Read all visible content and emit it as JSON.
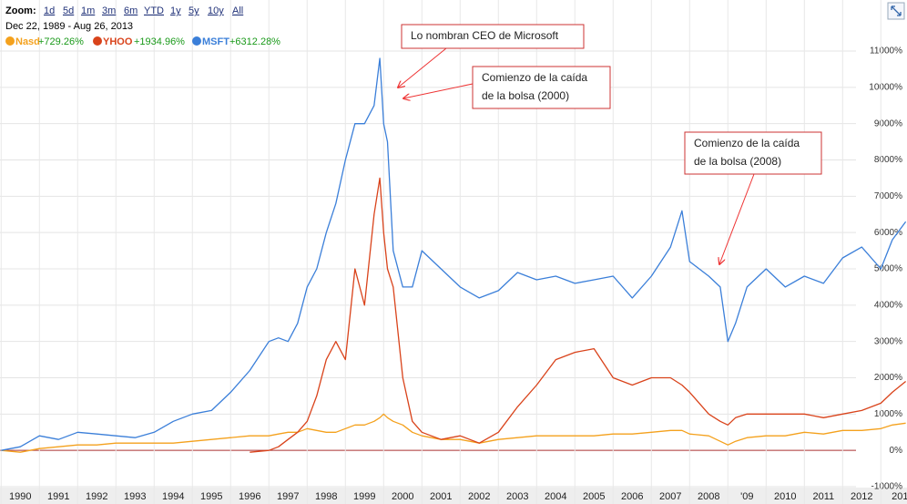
{
  "header": {
    "zoom_label": "Zoom:",
    "zoom_options": [
      "1d",
      "5d",
      "1m",
      "3m",
      "6m",
      "YTD",
      "1y",
      "5y",
      "10y",
      "All"
    ],
    "date_range": "Dec 22, 1989 - Aug 26, 2013"
  },
  "chart_data": {
    "type": "line",
    "x": [
      1990,
      1990.5,
      1991,
      1991.5,
      1992,
      1992.5,
      1993,
      1993.5,
      1994,
      1994.5,
      1995,
      1995.5,
      1996,
      1996.5,
      1997,
      1997.25,
      1997.5,
      1997.75,
      1998,
      1998.25,
      1998.5,
      1998.75,
      1999,
      1999.25,
      1999.5,
      1999.75,
      1999.9,
      2000,
      2000.1,
      2000.25,
      2000.5,
      2000.75,
      2001,
      2001.5,
      2002,
      2002.5,
      2003,
      2003.5,
      2004,
      2004.5,
      2005,
      2005.5,
      2006,
      2006.5,
      2007,
      2007.5,
      2007.8,
      2008,
      2008.5,
      2008.8,
      2009,
      2009.2,
      2009.5,
      2010,
      2010.5,
      2011,
      2011.5,
      2012,
      2012.5,
      2013,
      2013.3,
      2013.65
    ],
    "series": [
      {
        "name": "Nasd",
        "change": "+729.26%",
        "color": "#f4a11d",
        "values": [
          0,
          -50,
          50,
          100,
          150,
          150,
          200,
          200,
          200,
          200,
          250,
          300,
          350,
          400,
          400,
          450,
          500,
          500,
          600,
          550,
          500,
          500,
          600,
          700,
          700,
          800,
          900,
          1000,
          900,
          800,
          700,
          500,
          400,
          300,
          300,
          200,
          300,
          350,
          400,
          400,
          400,
          400,
          450,
          450,
          500,
          550,
          550,
          450,
          400,
          250,
          150,
          250,
          350,
          400,
          400,
          500,
          450,
          550,
          550,
          600,
          700,
          750
        ]
      },
      {
        "name": "YHOO",
        "change": "+1934.96%",
        "color": "#d9431b",
        "values": [
          null,
          null,
          null,
          null,
          null,
          null,
          null,
          null,
          null,
          null,
          null,
          null,
          null,
          -50,
          0,
          100,
          300,
          500,
          800,
          1500,
          2500,
          3000,
          2500,
          5000,
          4000,
          6500,
          7500,
          6000,
          5000,
          4500,
          2000,
          800,
          500,
          300,
          400,
          200,
          500,
          1200,
          1800,
          2500,
          2700,
          2800,
          2000,
          1800,
          2000,
          2000,
          1800,
          1600,
          1000,
          800,
          700,
          900,
          1000,
          1000,
          1000,
          1000,
          900,
          1000,
          1100,
          1300,
          1600,
          1900
        ]
      },
      {
        "name": "MSFT",
        "change": "+6312.28%",
        "color": "#3b7fd9",
        "values": [
          0,
          100,
          400,
          300,
          500,
          450,
          400,
          350,
          500,
          800,
          1000,
          1100,
          1600,
          2200,
          3000,
          3100,
          3000,
          3500,
          4500,
          5000,
          6000,
          6800,
          8000,
          9000,
          9000,
          9500,
          10800,
          9000,
          8500,
          5500,
          4500,
          4500,
          5500,
          5000,
          4500,
          4200,
          4400,
          4900,
          4700,
          4800,
          4600,
          4700,
          4800,
          4200,
          4800,
          5600,
          6600,
          5200,
          4800,
          4500,
          3000,
          3500,
          4500,
          5000,
          4500,
          4800,
          4600,
          5300,
          5600,
          5000,
          5800,
          6300
        ]
      }
    ],
    "xlim": [
      1989.97,
      2013.65
    ],
    "xticks": [
      1990,
      1991,
      1992,
      1993,
      1994,
      1995,
      1996,
      1997,
      1998,
      1999,
      2000,
      2001,
      2002,
      2003,
      2004,
      2005,
      2006,
      2007,
      2008,
      {
        "value": 2009,
        "label": "'09"
      },
      2010,
      2011,
      2012,
      {
        "value": 2013,
        "label": "201"
      }
    ],
    "ylim": [
      -1000,
      11000
    ],
    "yticks": [
      {
        "value": -1000,
        "label": "-1000%"
      },
      {
        "value": 0,
        "label": "0%"
      },
      {
        "value": 1000,
        "label": "1000%"
      },
      {
        "value": 2000,
        "label": "2000%"
      },
      {
        "value": 3000,
        "label": "3000%"
      },
      {
        "value": 4000,
        "label": "4000%"
      },
      {
        "value": 5000,
        "label": "5000%"
      },
      {
        "value": 6000,
        "label": "6000%"
      },
      {
        "value": 7000,
        "label": "7000%"
      },
      {
        "value": 8000,
        "label": "8000%"
      },
      {
        "value": 9000,
        "label": "9000%"
      },
      {
        "value": 10000,
        "label": "10000%"
      },
      {
        "value": 11000,
        "label": "11000%"
      }
    ],
    "grid": true,
    "annotations": [
      {
        "lines": [
          "Lo nombran CEO de Microsoft"
        ]
      },
      {
        "lines": [
          "Comienzo de la caída",
          "de la bolsa (2000)"
        ]
      },
      {
        "lines": [
          "Comienzo de la caída",
          "de la bolsa (2008)"
        ]
      }
    ]
  }
}
